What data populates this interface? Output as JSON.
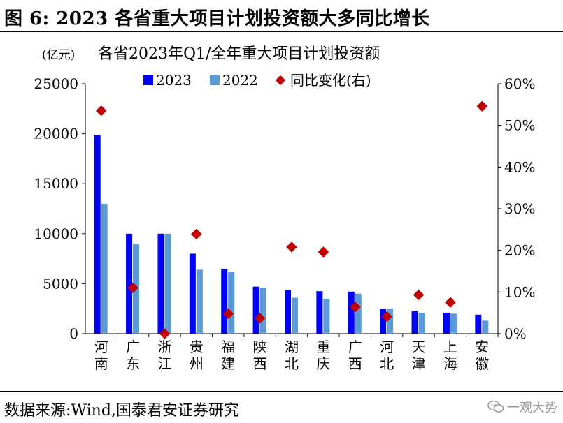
{
  "figure": {
    "title": "图 6:  2023 各省重大项目计划投资额大多同比增长",
    "source": "数据来源:Wind,国泰君安证券研究",
    "watermark": "一观大势",
    "watermark_icon": "wechat-icon"
  },
  "chart_data": {
    "type": "bar",
    "title": "各省2023年Q1/全年重大项目计划投资额",
    "ylabel": "(亿元)",
    "y2label": "",
    "categories": [
      "河南",
      "广东",
      "浙江",
      "贵州",
      "福建",
      "陕西",
      "湖北",
      "重庆",
      "广西",
      "河北",
      "天津",
      "上海",
      "安徽"
    ],
    "series": [
      {
        "name": "2023",
        "kind": "bar",
        "axis": "left",
        "color": "#0000ff",
        "values": [
          19900,
          10000,
          10000,
          8000,
          6500,
          4700,
          4400,
          4250,
          4200,
          2500,
          2300,
          2100,
          1900
        ]
      },
      {
        "name": "2022",
        "kind": "bar",
        "axis": "left",
        "color": "#5b9bd5",
        "values": [
          13000,
          9000,
          10000,
          6400,
          6200,
          4600,
          3600,
          3500,
          4000,
          2500,
          2100,
          2000,
          1300
        ]
      },
      {
        "name": "同比变化(右)",
        "kind": "scatter",
        "axis": "right",
        "color": "#c00000",
        "values": [
          53.5,
          11.0,
          0.0,
          23.9,
          4.8,
          3.7,
          20.8,
          19.6,
          6.4,
          4.1,
          9.3,
          7.5,
          54.6
        ]
      }
    ],
    "ylim": [
      0,
      25000
    ],
    "yticks": [
      "0",
      "5000",
      "10000",
      "15000",
      "20000",
      "25000"
    ],
    "y2lim": [
      0,
      60
    ],
    "y2ticks": [
      "0%",
      "10%",
      "20%",
      "30%",
      "40%",
      "50%",
      "60%"
    ],
    "grid": false,
    "legend_position": "top"
  }
}
